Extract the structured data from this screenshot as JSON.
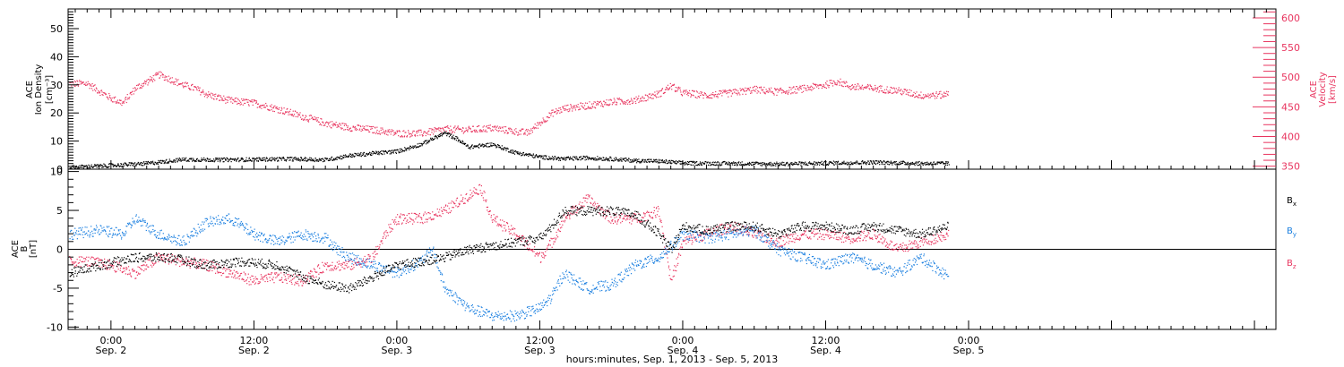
{
  "xaxis": {
    "title": "hours:minutes, Sep.  1, 2013 - Sep.  5, 2013",
    "range_hours": [
      -3.6,
      97.8
    ],
    "ticks": [
      {
        "h": 0,
        "time": "0:00",
        "date": "Sep. 2"
      },
      {
        "h": 12,
        "time": "12:00",
        "date": "Sep. 2"
      },
      {
        "h": 24,
        "time": "0:00",
        "date": "Sep. 3"
      },
      {
        "h": 36,
        "time": "12:00",
        "date": "Sep. 3"
      },
      {
        "h": 48,
        "time": "0:00",
        "date": "Sep. 4"
      },
      {
        "h": 60,
        "time": "12:00",
        "date": "Sep. 4"
      },
      {
        "h": 72,
        "time": "0:00",
        "date": "Sep. 5"
      }
    ]
  },
  "colors": {
    "black": "#000000",
    "pink": "#e8355f",
    "blue": "#1a7fe0"
  },
  "chart_data": [
    {
      "type": "scatter",
      "panel": "top",
      "ylabel_left": [
        "ACE",
        "Ion Density",
        "[cm⁻³]"
      ],
      "ylabel_right": [
        "ACE",
        "Velocity",
        "[km/s]"
      ],
      "ylim_left": [
        0,
        57
      ],
      "ylim_right": [
        345,
        615
      ],
      "yticks_left": [
        0,
        10,
        20,
        30,
        40,
        50
      ],
      "yticks_right": [
        350,
        400,
        450,
        500,
        550,
        600
      ],
      "series": [
        {
          "color": "#000000",
          "axis": "left",
          "points": [
            [
              -3.5,
              0.8
            ],
            [
              0,
              1.5
            ],
            [
              3,
              2.2
            ],
            [
              6,
              3.6
            ],
            [
              9,
              3.5
            ],
            [
              12,
              3.6
            ],
            [
              15,
              3.8
            ],
            [
              18,
              3.5
            ],
            [
              20,
              5
            ],
            [
              22,
              5.8
            ],
            [
              24,
              6.5
            ],
            [
              26,
              9
            ],
            [
              28,
              13
            ],
            [
              29,
              11
            ],
            [
              30,
              8
            ],
            [
              32,
              9
            ],
            [
              34,
              6
            ],
            [
              36,
              4.5
            ],
            [
              38,
              3.8
            ],
            [
              40,
              4.2
            ],
            [
              42,
              3.8
            ],
            [
              44,
              3.2
            ],
            [
              46,
              3
            ],
            [
              48,
              2.3
            ],
            [
              52,
              2.2
            ],
            [
              56,
              2
            ],
            [
              60,
              2.3
            ],
            [
              64,
              2.6
            ],
            [
              68,
              2.2
            ],
            [
              70.3,
              2.2
            ]
          ]
        },
        {
          "color": "#e8355f",
          "axis": "right",
          "points": [
            [
              -3.5,
              490
            ],
            [
              -2,
              490
            ],
            [
              -1,
              477
            ],
            [
              0,
              465
            ],
            [
              1,
              457
            ],
            [
              2,
              482
            ],
            [
              3,
              493
            ],
            [
              4,
              505
            ],
            [
              5,
              497
            ],
            [
              6,
              488
            ],
            [
              7,
              482
            ],
            [
              8,
              472
            ],
            [
              9,
              466
            ],
            [
              10,
              461
            ],
            [
              12,
              457
            ],
            [
              14,
              447
            ],
            [
              16,
              435
            ],
            [
              18,
              423
            ],
            [
              20,
              416
            ],
            [
              22,
              412
            ],
            [
              24,
              406
            ],
            [
              26,
              406
            ],
            [
              28,
              413
            ],
            [
              30,
              412
            ],
            [
              32,
              415
            ],
            [
              34,
              409
            ],
            [
              35,
              407
            ],
            [
              36,
              424
            ],
            [
              37,
              440
            ],
            [
              38,
              448
            ],
            [
              40,
              453
            ],
            [
              42,
              459
            ],
            [
              44,
              462
            ],
            [
              46,
              473
            ],
            [
              47,
              486
            ],
            [
              48,
              474
            ],
            [
              50,
              470
            ],
            [
              52,
              474
            ],
            [
              54,
              480
            ],
            [
              56,
              476
            ],
            [
              58,
              481
            ],
            [
              60,
              488
            ],
            [
              61,
              494
            ],
            [
              62,
              485
            ],
            [
              64,
              482
            ],
            [
              66,
              478
            ],
            [
              68,
              470
            ],
            [
              70,
              471
            ],
            [
              70.3,
              477
            ]
          ]
        }
      ]
    },
    {
      "type": "scatter",
      "panel": "bottom",
      "ylabel": [
        "ACE",
        "B",
        "[nT]"
      ],
      "ylim": [
        -10.3,
        10.3
      ],
      "yticks": [
        -10,
        -5,
        0,
        5,
        10
      ],
      "legend": [
        "Bx",
        "By",
        "Bz"
      ],
      "legend_placement": "right",
      "series": [
        {
          "name": "Bx",
          "color": "#000000",
          "points": [
            [
              -3.5,
              -3
            ],
            [
              -1,
              -2
            ],
            [
              2,
              -1
            ],
            [
              5,
              -1
            ],
            [
              8,
              -2
            ],
            [
              11,
              -1.5
            ],
            [
              14,
              -2
            ],
            [
              16,
              -3.5
            ],
            [
              18,
              -4.5
            ],
            [
              20,
              -5
            ],
            [
              22,
              -3.5
            ],
            [
              24,
              -2
            ],
            [
              26,
              -1.5
            ],
            [
              28,
              -1
            ],
            [
              30,
              0
            ],
            [
              32,
              0.5
            ],
            [
              34,
              1
            ],
            [
              36,
              1.5
            ],
            [
              37,
              3
            ],
            [
              38,
              5
            ],
            [
              40,
              5
            ],
            [
              42,
              5
            ],
            [
              44,
              4.5
            ],
            [
              46,
              2
            ],
            [
              47,
              0
            ],
            [
              48,
              3
            ],
            [
              50,
              2.5
            ],
            [
              52,
              3
            ],
            [
              54,
              3
            ],
            [
              56,
              2
            ],
            [
              58,
              3
            ],
            [
              60,
              3
            ],
            [
              62,
              2.5
            ],
            [
              64,
              3
            ],
            [
              66,
              2.5
            ],
            [
              68,
              2
            ],
            [
              70.3,
              3
            ]
          ]
        },
        {
          "name": "By",
          "color": "#1a7fe0",
          "points": [
            [
              -3.5,
              2
            ],
            [
              -1,
              2.5
            ],
            [
              1,
              2
            ],
            [
              2,
              4
            ],
            [
              4,
              2
            ],
            [
              6,
              1
            ],
            [
              8,
              3.5
            ],
            [
              10,
              4
            ],
            [
              12,
              2
            ],
            [
              14,
              1
            ],
            [
              16,
              2
            ],
            [
              18,
              1.5
            ],
            [
              19,
              0
            ],
            [
              20,
              -1
            ],
            [
              22,
              -2
            ],
            [
              24,
              -3
            ],
            [
              26,
              -1.5
            ],
            [
              27,
              0
            ],
            [
              28,
              -5
            ],
            [
              30,
              -7.5
            ],
            [
              32,
              -8.5
            ],
            [
              34,
              -8.5
            ],
            [
              36,
              -7.5
            ],
            [
              37,
              -6
            ],
            [
              38,
              -3
            ],
            [
              40,
              -5
            ],
            [
              42,
              -4.5
            ],
            [
              44,
              -2
            ],
            [
              46,
              -1
            ],
            [
              48,
              2
            ],
            [
              50,
              1.5
            ],
            [
              52,
              2
            ],
            [
              54,
              2.5
            ],
            [
              56,
              0
            ],
            [
              58,
              -1
            ],
            [
              60,
              -2
            ],
            [
              62,
              -1
            ],
            [
              64,
              -2
            ],
            [
              66,
              -3
            ],
            [
              68,
              -1
            ],
            [
              70.3,
              -3.5
            ]
          ]
        },
        {
          "name": "Bz",
          "color": "#e8355f",
          "points": [
            [
              -3.5,
              -1.5
            ],
            [
              -2,
              -1.5
            ],
            [
              0,
              -2
            ],
            [
              2,
              -3
            ],
            [
              4,
              -1
            ],
            [
              6,
              -1.5
            ],
            [
              8,
              -2
            ],
            [
              10,
              -3
            ],
            [
              12,
              -4
            ],
            [
              14,
              -3.5
            ],
            [
              16,
              -4
            ],
            [
              18,
              -2
            ],
            [
              20,
              -2
            ],
            [
              22,
              -1
            ],
            [
              23,
              2
            ],
            [
              24,
              4
            ],
            [
              26,
              4
            ],
            [
              28,
              5
            ],
            [
              30,
              7
            ],
            [
              31,
              8
            ],
            [
              32,
              4
            ],
            [
              34,
              2
            ],
            [
              36,
              -1
            ],
            [
              37,
              1
            ],
            [
              38,
              4
            ],
            [
              40,
              6.5
            ],
            [
              42,
              4
            ],
            [
              44,
              4
            ],
            [
              46,
              5
            ],
            [
              47,
              -4
            ],
            [
              48,
              1
            ],
            [
              50,
              2
            ],
            [
              52,
              3
            ],
            [
              54,
              2
            ],
            [
              56,
              1
            ],
            [
              58,
              2
            ],
            [
              60,
              2
            ],
            [
              62,
              1.5
            ],
            [
              64,
              2
            ],
            [
              66,
              0
            ],
            [
              68,
              1
            ],
            [
              70.3,
              2
            ]
          ]
        }
      ]
    }
  ]
}
